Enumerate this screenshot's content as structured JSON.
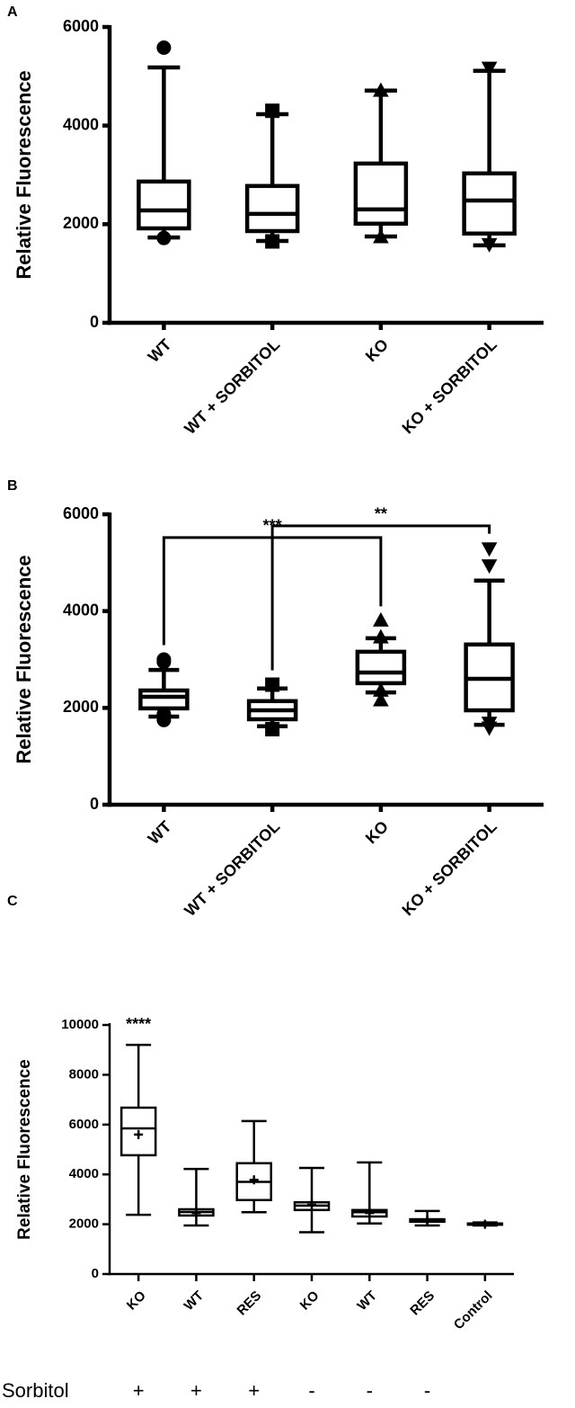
{
  "chart_data": [
    {
      "type": "box",
      "panel_label": "A",
      "y_label": "Relative Fluorescence",
      "categories": [
        "WT",
        "WT + SORBITOL",
        "KO",
        "KO + SORBITOL"
      ],
      "markers": [
        "circle",
        "square",
        "triangle",
        "triangle-down"
      ],
      "boxes": [
        {
          "low": 1730,
          "q1": 1915,
          "median": 2280,
          "q3": 2865,
          "high": 5180,
          "outliers": [
            5580,
            1720
          ]
        },
        {
          "low": 1660,
          "q1": 1860,
          "median": 2210,
          "q3": 2775,
          "high": 4230,
          "outliers": [
            4300,
            1650
          ]
        },
        {
          "low": 1750,
          "q1": 2010,
          "median": 2300,
          "q3": 3230,
          "high": 4710,
          "outliers": [
            4700,
            1730
          ]
        },
        {
          "low": 1570,
          "q1": 1810,
          "median": 2480,
          "q3": 3030,
          "high": 5110,
          "outliers": [
            5180,
            1600
          ]
        }
      ],
      "ylim": [
        0,
        6000
      ],
      "yticks": [
        0,
        2000,
        4000,
        6000
      ]
    },
    {
      "type": "box",
      "panel_label": "B",
      "y_label": "Relative Fluorescence",
      "categories": [
        "WT",
        "WT + SORBITOL",
        "KO",
        "KO + SORBITOL"
      ],
      "markers": [
        "circle",
        "square",
        "triangle",
        "triangle-down"
      ],
      "boxes": [
        {
          "low": 1820,
          "q1": 1990,
          "median": 2230,
          "q3": 2360,
          "high": 2785,
          "outliers": [
            3000,
            2950,
            1870,
            1750
          ]
        },
        {
          "low": 1620,
          "q1": 1765,
          "median": 1950,
          "q3": 2140,
          "high": 2400,
          "outliers": [
            2480,
            1560
          ]
        },
        {
          "low": 2320,
          "q1": 2510,
          "median": 2730,
          "q3": 3160,
          "high": 3440,
          "outliers": [
            3800,
            3450,
            2350,
            2150
          ]
        },
        {
          "low": 1650,
          "q1": 1950,
          "median": 2600,
          "q3": 3310,
          "high": 4630,
          "outliers": [
            5300,
            4950,
            1700,
            1600
          ]
        }
      ],
      "annotations": [
        {
          "text": "***",
          "from": 0,
          "to": 2,
          "y": 5520
        },
        {
          "text": "**",
          "from": 1,
          "to": 3,
          "y": 5760
        }
      ],
      "ylim": [
        0,
        6000
      ],
      "yticks": [
        0,
        2000,
        4000,
        6000
      ]
    },
    {
      "type": "box",
      "panel_label": "C",
      "y_label": "Relative Fluorescence",
      "categories": [
        "KO",
        "WT",
        "RES",
        "KO",
        "WT",
        "RES",
        "Control"
      ],
      "boxes": [
        {
          "low": 2380,
          "q1": 4770,
          "median": 5850,
          "q3": 6680,
          "high": 9200,
          "mean": 5600,
          "label": "****"
        },
        {
          "low": 1950,
          "q1": 2350,
          "median": 2490,
          "q3": 2600,
          "high": 4220,
          "mean": 2450
        },
        {
          "low": 2480,
          "q1": 2970,
          "median": 3700,
          "q3": 4450,
          "high": 6140,
          "mean": 3780
        },
        {
          "low": 1680,
          "q1": 2570,
          "median": 2750,
          "q3": 2880,
          "high": 4260,
          "mean": 2780
        },
        {
          "low": 2030,
          "q1": 2310,
          "median": 2480,
          "q3": 2570,
          "high": 4480,
          "mean": 2450
        },
        {
          "low": 1950,
          "q1": 2100,
          "median": 2150,
          "q3": 2200,
          "high": 2530,
          "mean": 2150
        },
        {
          "low": 1950,
          "q1": 1980,
          "median": 2000,
          "q3": 2030,
          "high": 2070,
          "mean": 2000
        }
      ],
      "row_label": "Sorbitol",
      "row_values": [
        "+",
        "+",
        "+",
        "-",
        "-",
        "-",
        null
      ],
      "ylim": [
        0,
        10000
      ],
      "yticks": [
        0,
        2000,
        4000,
        6000,
        8000,
        10000
      ]
    }
  ]
}
